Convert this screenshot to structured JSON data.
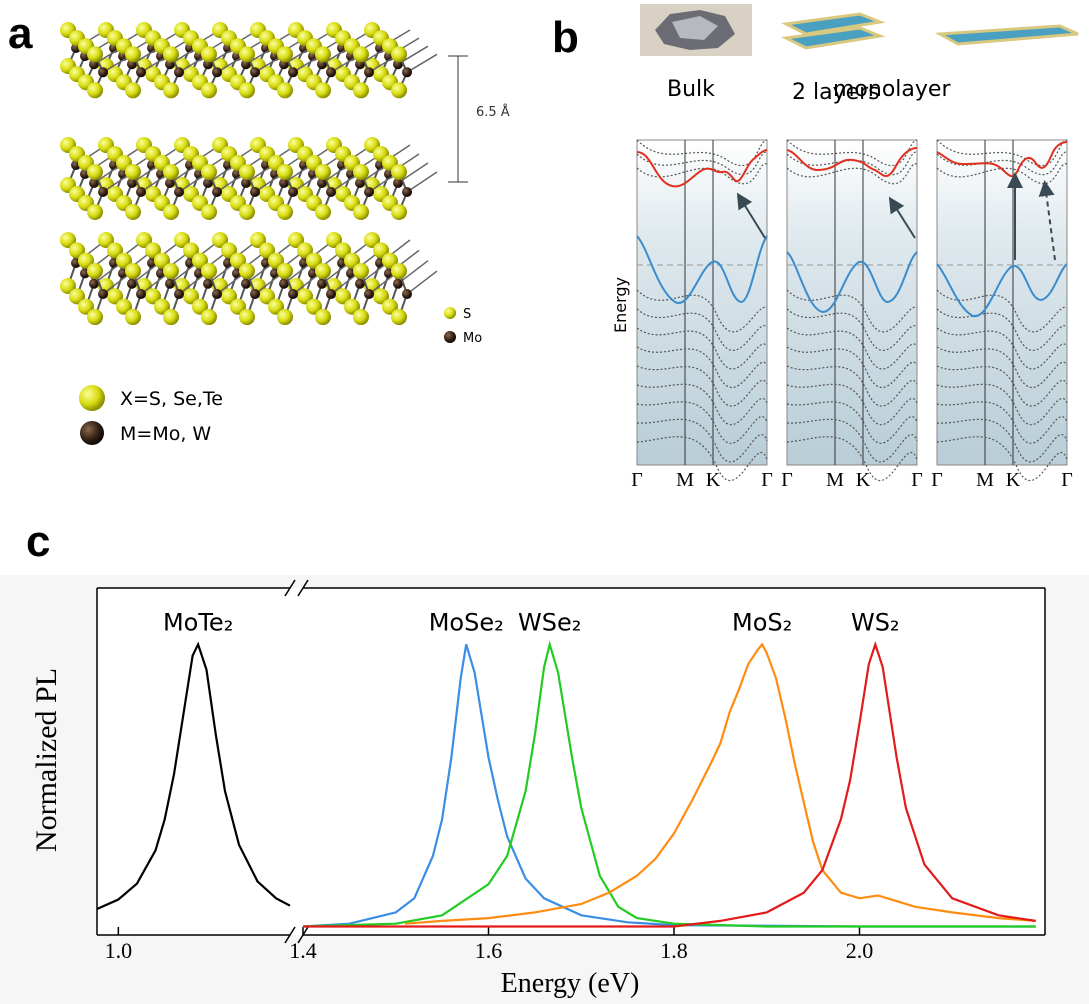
{
  "panel_a": {
    "label": "a",
    "spacing": "6.5 Å",
    "legend_small": [
      "S",
      "Mo"
    ],
    "legend": [
      "X=S, Se,Te",
      "M=Mo, W"
    ]
  },
  "panel_b": {
    "label": "b",
    "columns": [
      "Bulk",
      "2 layers",
      "monolayer"
    ],
    "y_label": "Energy",
    "k_labels": [
      "Γ",
      "M",
      "K",
      "Γ"
    ]
  },
  "panel_c": {
    "label": "c"
  },
  "chart_data": {
    "type": "line",
    "xlabel": "Energy (eV)",
    "ylabel": "Normalized PL",
    "xlim": [
      0.977,
      2.2
    ],
    "x_break": [
      1.185,
      1.4
    ],
    "ylim": [
      -0.03,
      1.2
    ],
    "xticks": [
      {
        "value": 1,
        "label": "1.0"
      },
      1.4,
      1.6,
      1.8,
      {
        "value": 2,
        "label": "2.0"
      }
    ],
    "series": [
      {
        "name": "MoTe₂",
        "color": "#000000",
        "x": [
          0.977,
          1.0,
          1.02,
          1.04,
          1.05,
          1.06,
          1.07,
          1.08,
          1.086,
          1.095,
          1.105,
          1.115,
          1.13,
          1.15,
          1.17,
          1.185
        ],
        "values": [
          0.062,
          0.096,
          0.152,
          0.27,
          0.38,
          0.54,
          0.75,
          0.96,
          1,
          0.91,
          0.68,
          0.48,
          0.29,
          0.16,
          0.1,
          0.074
        ]
      },
      {
        "name": "MoSe₂",
        "color": "#3a8ee6",
        "x": [
          1.4,
          1.45,
          1.5,
          1.52,
          1.54,
          1.55,
          1.56,
          1.57,
          1.576,
          1.585,
          1.6,
          1.61,
          1.62,
          1.64,
          1.66,
          1.7,
          1.75,
          1.8,
          2.0,
          2.19
        ],
        "values": [
          0,
          0.01,
          0.05,
          0.1,
          0.25,
          0.38,
          0.6,
          0.88,
          1,
          0.9,
          0.6,
          0.45,
          0.32,
          0.17,
          0.1,
          0.04,
          0.015,
          0.005,
          0,
          0
        ]
      },
      {
        "name": "WSe₂",
        "color": "#22cc22",
        "x": [
          1.4,
          1.5,
          1.55,
          1.6,
          1.62,
          1.64,
          1.65,
          1.66,
          1.666,
          1.675,
          1.69,
          1.7,
          1.72,
          1.74,
          1.76,
          1.8,
          1.9,
          2.19
        ],
        "values": [
          0,
          0.01,
          0.04,
          0.15,
          0.25,
          0.48,
          0.68,
          0.92,
          1,
          0.9,
          0.6,
          0.42,
          0.18,
          0.07,
          0.03,
          0.01,
          0,
          0
        ]
      },
      {
        "name": "MoS₂",
        "color": "#ff8c10",
        "x": [
          1.51,
          1.55,
          1.6,
          1.65,
          1.7,
          1.73,
          1.76,
          1.78,
          1.8,
          1.82,
          1.84,
          1.85,
          1.86,
          1.87,
          1.88,
          1.89,
          1.895,
          1.9,
          1.91,
          1.92,
          1.93,
          1.94,
          1.95,
          1.96,
          1.98,
          2.0,
          2.02,
          2.04,
          2.06,
          2.1,
          2.15,
          2.19
        ],
        "values": [
          0.01,
          0.02,
          0.03,
          0.05,
          0.08,
          0.12,
          0.18,
          0.24,
          0.33,
          0.45,
          0.58,
          0.65,
          0.76,
          0.84,
          0.93,
          0.98,
          1,
          0.97,
          0.88,
          0.74,
          0.58,
          0.44,
          0.3,
          0.2,
          0.12,
          0.1,
          0.11,
          0.09,
          0.07,
          0.05,
          0.03,
          0.02
        ]
      },
      {
        "name": "WS₂",
        "color": "#e31a1a",
        "x": [
          1.4,
          1.8,
          1.85,
          1.9,
          1.94,
          1.96,
          1.98,
          1.99,
          2.0,
          2.01,
          2.017,
          2.025,
          2.04,
          2.05,
          2.07,
          2.1,
          2.15,
          2.19
        ],
        "values": [
          0,
          0,
          0.02,
          0.05,
          0.12,
          0.2,
          0.38,
          0.52,
          0.72,
          0.93,
          1,
          0.92,
          0.6,
          0.42,
          0.22,
          0.1,
          0.04,
          0.02
        ]
      }
    ]
  }
}
